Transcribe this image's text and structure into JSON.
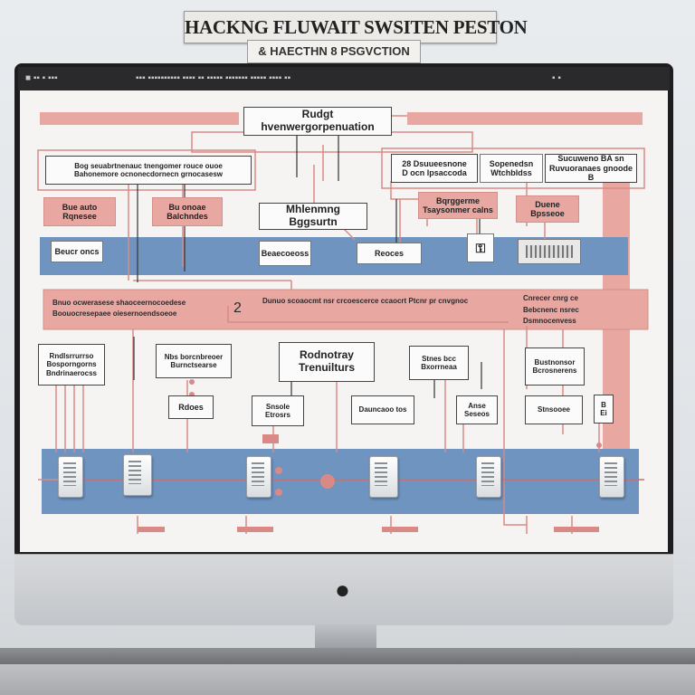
{
  "header": {
    "title": "HACKNG FLUWAIT SWSITEN PESTON",
    "subtitle": "& HAECTHN 8 PSGVCTION"
  },
  "diagram": {
    "top_center_box": "Rudgt hvenwergorpenuation",
    "row1": {
      "left_wide": "Bog seuabrtnenauc tnengomer rouce ouoe\nBahonemore ocnonecdornecn grnocasesw",
      "right_a": "28 Dsuueesnone\nD ocn lpsaccoda",
      "right_b": "Sopenedsn\nWtchbldss",
      "right_c": "Sucuweno BA sn\nRuvuoranaes gnoode B"
    },
    "row2": {
      "pink_left": "Bue auto\nRqnesee",
      "pink_mid": "Bu onoae\nBalchndes",
      "center_box": "Mhlenmng Bggsurtn",
      "pink_right_a": "Bqrggerme\nTsaysonmer calns",
      "pink_right_b": "Duene\nBpsseoe"
    },
    "row3": {
      "small_left": "Beucr oncs",
      "small_mid": "Beaecoeoss",
      "small_right": "Reoces"
    },
    "band": {
      "number": "2",
      "text_left_1": "Bnuo ocwerasese shaoceernocoedese",
      "text_left_2": "Boouocresepaee oiesernoendsoeoe",
      "text_mid": "Dunuo scoaocmt nsr crcoescerce ccaocrt Ptcnr pr cnvgnoc",
      "text_right_1": "Cnrecer cnrg ce",
      "text_right_2": "Bebcnenc nsrec",
      "text_right_3": "Dsmnocenvess"
    },
    "row4": {
      "box_a": "Rndlsrrurrso\nBosporngorns\nBndrinaerocss",
      "box_b": "Nbs borcnbreoer\nBurnctsearse",
      "center_box": "Rodnotray\nTrenuilturs",
      "box_d": "Stnes bcc\nBxorrneaa",
      "box_e": "Bustnonsor\nBcrosnerens"
    },
    "row5": {
      "box_a": "Rdoes",
      "box_b": "Snsole\nEtrosrs",
      "box_c": "Dauncaoo tos",
      "box_d": "Anse\nSeseos",
      "box_e": "Stnsooee",
      "box_f": "B\nEi"
    }
  },
  "colors": {
    "pink": "#e9a7a2",
    "pink_line": "#d98a86",
    "blue_band": "#6f94c0",
    "screen_bg": "#f6f4f2"
  }
}
